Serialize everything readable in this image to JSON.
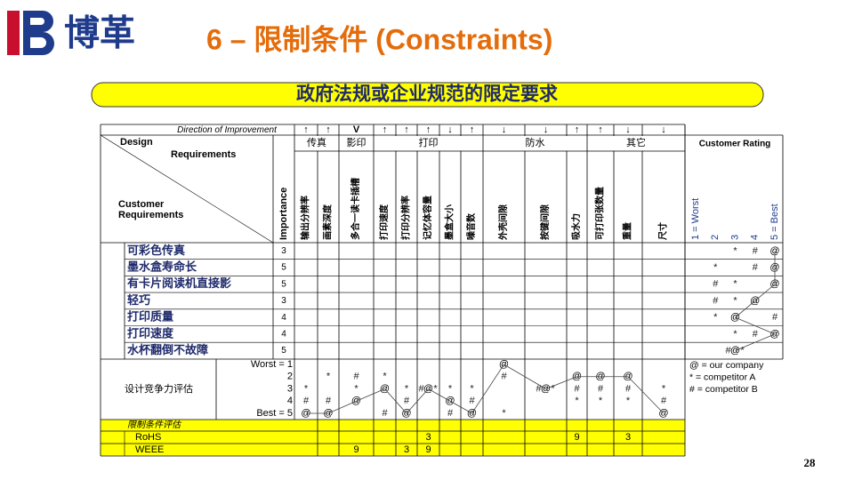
{
  "logo": "博革",
  "title": "6 – 限制条件 (Constraints)",
  "banner": "政府法规或企业规范的限定要求",
  "page_number": "28",
  "table": {
    "direction_label": "Direction of Improvement",
    "design_label": "Design",
    "requirements_label": "Requirements",
    "customer_label": [
      "Customer",
      "Requirements"
    ],
    "importance_label": "Importance",
    "symbols": {
      "ours": "@",
      "a": "*",
      "b": "#"
    },
    "groups": [
      {
        "name": "传真",
        "columns": [
          {
            "name": "输出分辨率",
            "direction": "↑",
            "evaluation": {
              "ours": 5,
              "a": 3,
              "b": 4
            }
          },
          {
            "name": "画素深度",
            "direction": "↑",
            "evaluation": {
              "ours": 5,
              "a": 2,
              "b": 4
            }
          }
        ]
      },
      {
        "name": "影印",
        "columns": [
          {
            "name": "多合一读卡插槽",
            "direction": "V",
            "evaluation": {
              "ours": 4,
              "a": 3,
              "b": 2
            }
          }
        ]
      },
      {
        "name": "打印",
        "columns": [
          {
            "name": "打印速度",
            "direction": "↑",
            "evaluation": {
              "ours": 3,
              "a": 2,
              "b": 5
            }
          },
          {
            "name": "打印分辨率",
            "direction": "↑",
            "evaluation": {
              "ours": 5,
              "a": 3,
              "b": 4
            }
          },
          {
            "name": "记忆体容量",
            "direction": "↑",
            "evaluation": {
              "ours": 3,
              "a": 3,
              "b": 3
            }
          },
          {
            "name": "墨盒大小",
            "direction": "↓",
            "evaluation": {
              "ours": 4,
              "a": 3,
              "b": 5
            }
          },
          {
            "name": "噪音数",
            "direction": "↑",
            "evaluation": {
              "ours": 5,
              "a": 3,
              "b": 4
            }
          }
        ]
      },
      {
        "name": "防水",
        "columns": [
          {
            "name": "外壳间隙",
            "direction": "↓",
            "evaluation": {
              "ours": 1,
              "a": 5,
              "b": 2
            }
          },
          {
            "name": "按键间隙",
            "direction": "↓",
            "evaluation": {
              "ours": 3,
              "a": 3,
              "b": 3
            }
          },
          {
            "name": "吸水力",
            "direction": "↑",
            "evaluation": {
              "ours": 2,
              "a": 4,
              "b": 3
            }
          }
        ]
      },
      {
        "name": "其它",
        "columns": [
          {
            "name": "可打印张数量",
            "direction": "↑",
            "evaluation": {
              "ours": 2,
              "a": 4,
              "b": 3
            }
          },
          {
            "name": "重量",
            "direction": "↓",
            "evaluation": {
              "ours": 2,
              "a": 4,
              "b": 3
            }
          },
          {
            "name": "尺寸",
            "direction": "↓",
            "evaluation": {
              "ours": 5,
              "a": 3,
              "b": 4
            }
          }
        ]
      }
    ],
    "rating_label": "Customer Rating",
    "rating_scale": [
      "1 = Worst",
      "2",
      "3",
      "4",
      "5 = Best"
    ],
    "requirements": [
      {
        "name": "可彩色传真",
        "importance": 3,
        "rating": {
          "ours": 5,
          "a": 3,
          "b": 4
        }
      },
      {
        "name": "墨水盒寿命长",
        "importance": 5,
        "rating": {
          "ours": 5,
          "a": 2,
          "b": 4
        }
      },
      {
        "name": "有卡片阅读机直接影",
        "importance": 5,
        "rating": {
          "ours": 5,
          "a": 3,
          "b": 2
        }
      },
      {
        "name": "轻巧",
        "importance": 3,
        "rating": {
          "ours": 4,
          "a": 3,
          "b": 2
        }
      },
      {
        "name": "打印质量",
        "importance": 4,
        "rating": {
          "ours": 3,
          "a": 2,
          "b": 5
        }
      },
      {
        "name": "打印速度",
        "importance": 4,
        "rating": {
          "ours": 5,
          "a": 3,
          "b": 4
        }
      },
      {
        "name": "水杯翻倒不故障",
        "importance": 5,
        "rating": {
          "ours": 3,
          "a": 3,
          "b": 3
        }
      }
    ],
    "evaluation_label": "设计竞争力评估",
    "evaluation_scale": [
      "Worst = 1",
      "2",
      "3",
      "4",
      "Best = 5"
    ],
    "legend": [
      "@ = our company",
      "* = competitor A",
      "# = competitor B"
    ],
    "constraints": {
      "title": "限制条件评估",
      "rows": [
        {
          "name": "RoHS",
          "values": [
            null,
            null,
            null,
            null,
            null,
            3,
            null,
            null,
            null,
            null,
            9,
            null,
            3,
            null
          ]
        },
        {
          "name": "WEEE",
          "values": [
            null,
            null,
            9,
            null,
            3,
            9,
            null,
            null,
            null,
            null,
            null,
            null,
            null,
            null
          ]
        }
      ]
    }
  }
}
